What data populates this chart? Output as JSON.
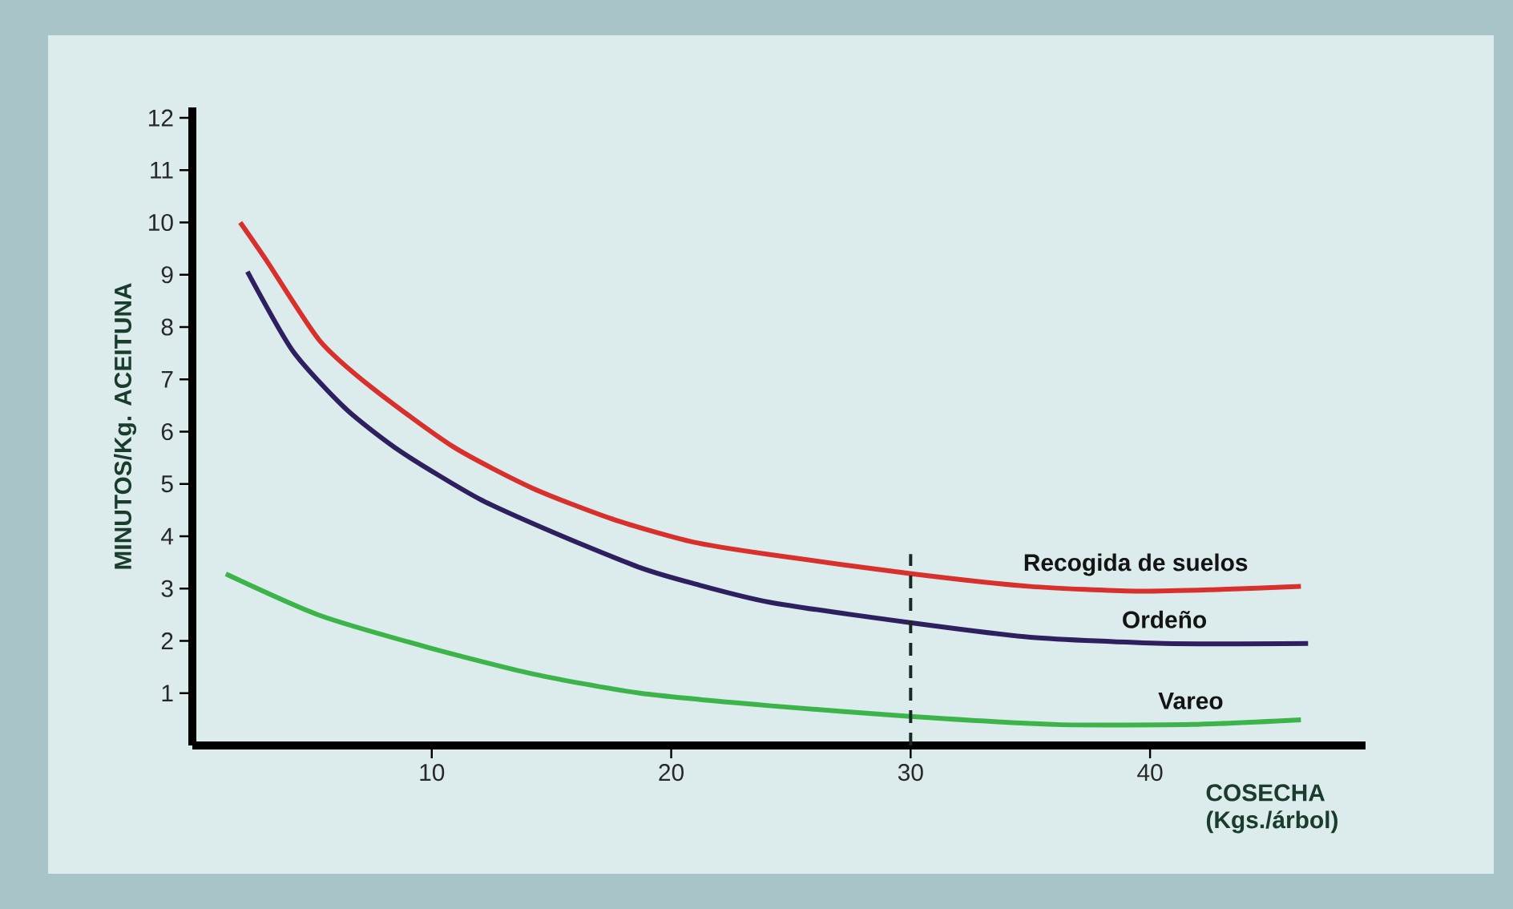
{
  "chart_data": {
    "type": "line",
    "xlabel": "COSECHA\n(Kgs./árbol)",
    "ylabel": "MINUTOS/Kg. ACEITUNA",
    "xlim": [
      0,
      49
    ],
    "ylim": [
      0,
      12.2
    ],
    "xticks": [
      10,
      20,
      30,
      40
    ],
    "yticks": [
      1,
      2,
      3,
      4,
      5,
      6,
      7,
      8,
      9,
      10,
      11,
      12
    ],
    "grid": false,
    "marker": "none",
    "line_style": "solid",
    "series": [
      {
        "name": "Recogida de suelos",
        "color": "#d8302c",
        "x": [
          2.0,
          3.1,
          5.3,
          7.5,
          10.9,
          14.2,
          17.6,
          20.9,
          24.1,
          30.1,
          35.0,
          39.4,
          42.8,
          46.3
        ],
        "values": [
          10.0,
          9.27,
          7.75,
          6.84,
          5.71,
          4.92,
          4.32,
          3.89,
          3.65,
          3.28,
          3.04,
          2.95,
          2.98,
          3.04
        ]
      },
      {
        "name": "Ordeño",
        "color": "#2e1f5e",
        "x": [
          2.3,
          4.2,
          6.4,
          8.7,
          12.0,
          15.4,
          18.7,
          20.9,
          24.1,
          30.1,
          35.0,
          40.6,
          46.6
        ],
        "values": [
          9.06,
          7.54,
          6.44,
          5.62,
          4.71,
          4.01,
          3.4,
          3.1,
          2.74,
          2.34,
          2.07,
          1.95,
          1.95
        ]
      },
      {
        "name": "Vareo",
        "color": "#3cb44a",
        "x": [
          1.4,
          5.3,
          9.8,
          14.2,
          18.7,
          24.1,
          30.1,
          36.1,
          41.7,
          46.3
        ],
        "values": [
          3.28,
          2.49,
          1.88,
          1.37,
          1.0,
          0.76,
          0.55,
          0.4,
          0.4,
          0.49
        ]
      }
    ],
    "ref_lines": [
      {
        "axis": "x",
        "value": 30,
        "color": "#1a2a22",
        "line_style": "dashed"
      }
    ]
  }
}
